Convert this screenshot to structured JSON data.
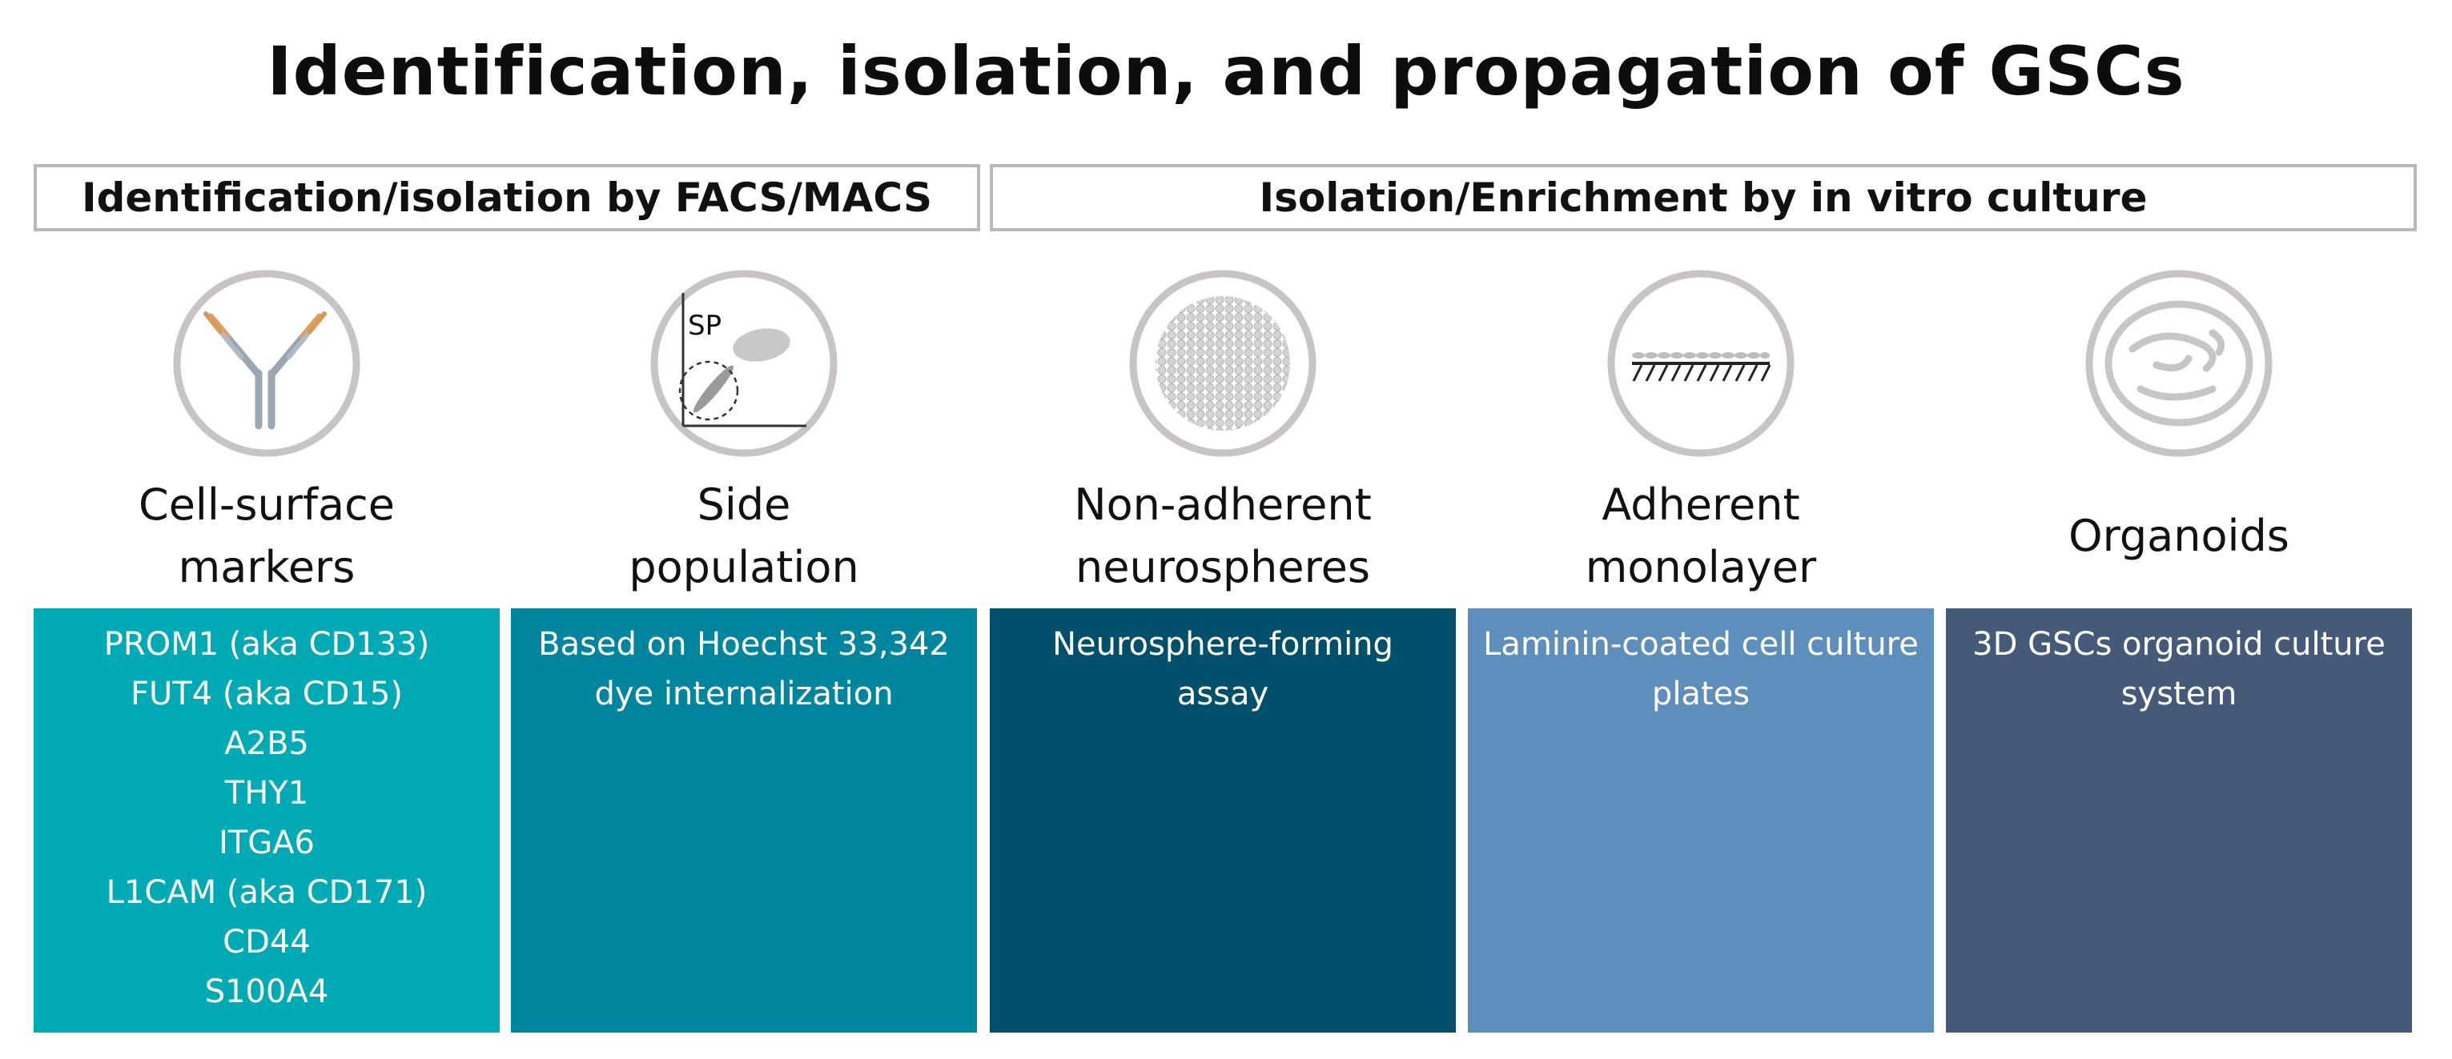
{
  "title": "Identification, isolation, and propagation of GSCs",
  "sections": [
    {
      "label": "Identification/isolation by FACS/MACS"
    },
    {
      "label": "Isolation/Enrichment by in vitro culture"
    }
  ],
  "columns": [
    {
      "icon": "antibody-icon",
      "label": "Cell-surface\nmarkers",
      "color": "#00aab5",
      "items": [
        "PROM1 (aka CD133)",
        "FUT4 (aka CD15)",
        "A2B5",
        "THY1",
        "ITGA6",
        "L1CAM (aka CD171)",
        "CD44",
        "S100A4"
      ]
    },
    {
      "icon": "side-population-plot-icon",
      "label": "Side\npopulation",
      "color": "#00859f",
      "icon_text": "SP",
      "items": [
        "Based on Hoechst 33,342",
        "dye internalization"
      ]
    },
    {
      "icon": "neurosphere-icon",
      "label": "Non-adherent\nneurospheres",
      "color": "#004f6b",
      "items": [
        "Neurosphere-forming",
        "assay"
      ]
    },
    {
      "icon": "monolayer-icon",
      "label": "Adherent\nmonolayer",
      "color": "#5e8ebc",
      "items": [
        "Laminin-coated cell culture",
        "plates"
      ]
    },
    {
      "icon": "organoid-icon",
      "label": "Organoids",
      "color": "#445a78",
      "items": [
        "3D GSCs organoid culture",
        "system"
      ]
    }
  ]
}
